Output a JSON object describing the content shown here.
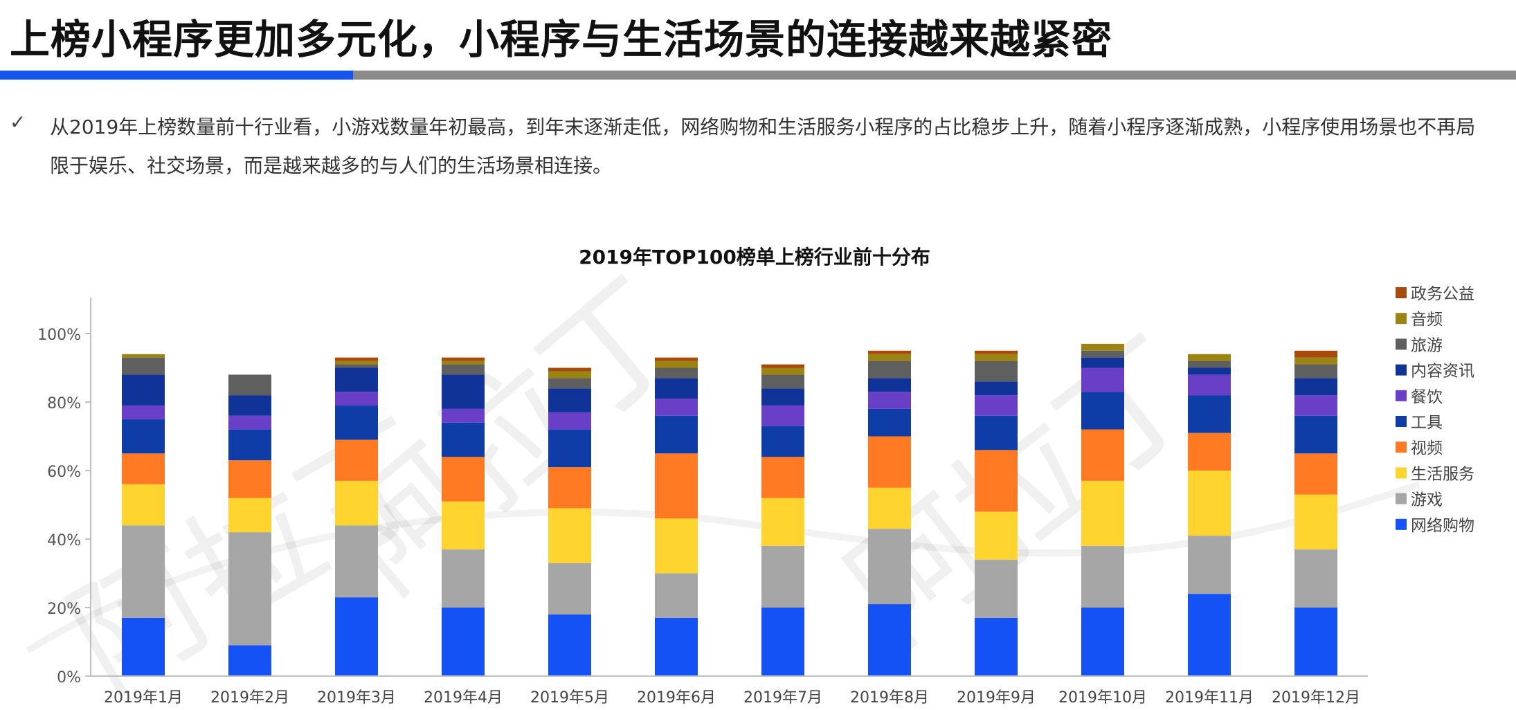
{
  "page": {
    "title": "上榜小程序更加多元化，小程序与生活场景的连接越来越紧密",
    "bullet_icon": "check-icon",
    "bullet_text": "从2019年上榜数量前十行业看，小游戏数量年初最高，到年末逐渐走低，网络购物和生活服务小程序的占比稳步上升，随着小程序逐渐成熟，小程序使用场景也不再局限于娱乐、社交场景，而是越来越多的与人们的生活场景相连接。",
    "accent_color": "#1654f0"
  },
  "chart_data": {
    "type": "bar",
    "stacked": true,
    "title": "2019年TOP100榜单上榜行业前十分布",
    "xlabel": "",
    "ylabel": "",
    "ylim": [
      0,
      110
    ],
    "yticks": [
      0,
      20,
      40,
      60,
      80,
      100
    ],
    "ytick_labels": [
      "0%",
      "20%",
      "40%",
      "60%",
      "80%",
      "100%"
    ],
    "grid": false,
    "legend_position": "right",
    "categories": [
      "2019年1月",
      "2019年2月",
      "2019年3月",
      "2019年4月",
      "2019年5月",
      "2019年6月",
      "2019年7月",
      "2019年8月",
      "2019年9月",
      "2019年10月",
      "2019年11月",
      "2019年12月"
    ],
    "series": [
      {
        "name": "网络购物",
        "color": "#1452f5",
        "values": [
          17,
          9,
          23,
          20,
          18,
          17,
          20,
          21,
          17,
          20,
          24,
          20
        ]
      },
      {
        "name": "游戏",
        "color": "#a6a6a6",
        "values": [
          27,
          33,
          21,
          17,
          15,
          13,
          18,
          22,
          17,
          18,
          17,
          17
        ]
      },
      {
        "name": "生活服务",
        "color": "#ffd42e",
        "values": [
          12,
          10,
          13,
          14,
          16,
          16,
          14,
          12,
          14,
          19,
          19,
          16
        ]
      },
      {
        "name": "视频",
        "color": "#ff7a22",
        "values": [
          9,
          11,
          12,
          13,
          12,
          19,
          12,
          15,
          18,
          15,
          11,
          12
        ]
      },
      {
        "name": "工具",
        "color": "#0f3da8",
        "values": [
          10,
          9,
          10,
          10,
          11,
          11,
          9,
          8,
          10,
          11,
          11,
          11
        ]
      },
      {
        "name": "餐饮",
        "color": "#6a3fc8",
        "values": [
          4,
          4,
          4,
          4,
          5,
          5,
          6,
          5,
          6,
          7,
          6,
          6
        ]
      },
      {
        "name": "内容资讯",
        "color": "#0f3399",
        "values": [
          9,
          6,
          7,
          10,
          7,
          6,
          5,
          4,
          4,
          3,
          2,
          5
        ]
      },
      {
        "name": "旅游",
        "color": "#5f5f5f",
        "values": [
          5,
          6,
          1,
          3,
          3,
          3,
          4,
          5,
          6,
          2,
          2,
          4
        ]
      },
      {
        "name": "音频",
        "color": "#9c8412",
        "values": [
          1,
          0,
          1,
          1,
          2,
          2,
          2,
          2,
          2,
          2,
          2,
          2
        ]
      },
      {
        "name": "政务公益",
        "color": "#a84a0c",
        "values": [
          0,
          0,
          1,
          1,
          1,
          1,
          1,
          1,
          1,
          0,
          0,
          2
        ]
      }
    ]
  },
  "watermark": {
    "text": "阿拉丁"
  }
}
